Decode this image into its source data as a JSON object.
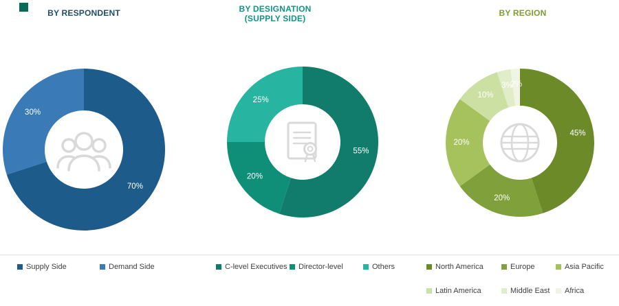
{
  "page": {
    "background": "#ffffff"
  },
  "brand": {
    "corner_color": "#0b6a57"
  },
  "chart_data": [
    {
      "type": "donut",
      "title": "BY RESPONDENT",
      "subtitle": "",
      "title_color": "#1f4e66",
      "center_icon": "people-icon",
      "legend_position": "bottom",
      "legend_rows": [
        2
      ],
      "segments": [
        {
          "label": "Supply Side",
          "value": 70,
          "pct_label": "70%",
          "color": "#1d5b8a",
          "label_color": "#ffffff"
        },
        {
          "label": "Demand Side",
          "value": 30,
          "pct_label": "30%",
          "color": "#3a7ab6",
          "label_color": "#ffffff"
        }
      ]
    },
    {
      "type": "donut",
      "title": "BY DESIGNATION",
      "subtitle": "(SUPPLY SIDE)",
      "title_color": "#0f9384",
      "center_icon": "certificate-icon",
      "legend_position": "bottom",
      "legend_rows": [
        3
      ],
      "segments": [
        {
          "label": "C-level Executives",
          "value": 55,
          "pct_label": "55%",
          "color": "#117c6b",
          "label_color": "#ffffff"
        },
        {
          "label": "Director-level",
          "value": 20,
          "pct_label": "20%",
          "color": "#0f8f77",
          "label_color": "#ffffff"
        },
        {
          "label": "Others",
          "value": 25,
          "pct_label": "25%",
          "color": "#27b5a1",
          "label_color": "#ffffff"
        }
      ]
    },
    {
      "type": "donut",
      "title": "BY REGION",
      "subtitle": "",
      "title_color": "#7d9c2f",
      "center_icon": "globe-icon",
      "legend_position": "bottom",
      "legend_rows": [
        3,
        3
      ],
      "segments": [
        {
          "label": "North America",
          "value": 45,
          "pct_label": "45%",
          "color": "#6d8a28",
          "label_color": "#ffffff"
        },
        {
          "label": "Europe",
          "value": 20,
          "pct_label": "20%",
          "color": "#7fa03b",
          "label_color": "#ffffff"
        },
        {
          "label": "Asia Pacific",
          "value": 20,
          "pct_label": "20%",
          "color": "#a6c25d",
          "label_color": "#ffffff"
        },
        {
          "label": "Latin America",
          "value": 10,
          "pct_label": "10%",
          "color": "#cde0a4",
          "label_color": "#ffffff"
        },
        {
          "label": "Middle East",
          "value": 3,
          "pct_label": "3%",
          "color": "#e1ecc8",
          "label_color": "#ffffff"
        },
        {
          "label": "Africa",
          "value": 2,
          "pct_label": "2%",
          "color": "#f0f5e3",
          "label_color": "#ffffff"
        }
      ]
    }
  ]
}
